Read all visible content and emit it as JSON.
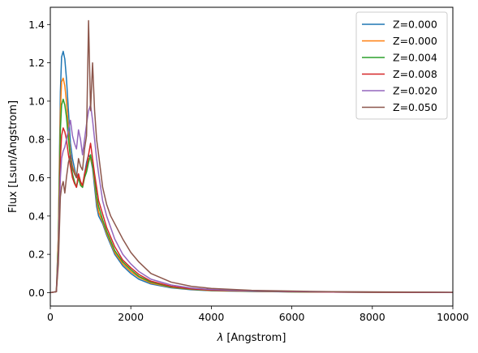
{
  "chart_data": {
    "type": "line",
    "xlabel_symbol": "λ",
    "xlabel_unit": "[Angstrom]",
    "ylabel": "Flux [Lsun/Angstrom]",
    "xlim": [
      0,
      10000
    ],
    "ylim": [
      -0.07,
      1.49
    ],
    "xticks": [
      0,
      2000,
      4000,
      6000,
      8000,
      10000
    ],
    "yticks": [
      0.0,
      0.2,
      0.4,
      0.6,
      0.8,
      1.0,
      1.2,
      1.4
    ],
    "ytick_labels": [
      "0.0",
      "0.2",
      "0.4",
      "0.6",
      "0.8",
      "1.0",
      "1.2",
      "1.4"
    ],
    "grid": false,
    "legend_position": "top-right",
    "series": [
      {
        "name": "Z=0.000",
        "color": "#1f77b4",
        "x": [
          0,
          150,
          200,
          250,
          280,
          320,
          360,
          400,
          450,
          500,
          550,
          600,
          650,
          700,
          750,
          800,
          850,
          900,
          950,
          1000,
          1050,
          1100,
          1150,
          1200,
          1300,
          1400,
          1500,
          1600,
          1800,
          2000,
          2200,
          2500,
          3000,
          3500,
          4000,
          5000,
          6000,
          7000,
          8000,
          9000,
          10000
        ],
        "y": [
          0,
          0.005,
          0.3,
          1.05,
          1.23,
          1.26,
          1.22,
          1.12,
          0.95,
          0.78,
          0.7,
          0.65,
          0.6,
          0.62,
          0.58,
          0.55,
          0.62,
          0.68,
          0.72,
          0.7,
          0.65,
          0.55,
          0.45,
          0.4,
          0.36,
          0.3,
          0.25,
          0.2,
          0.14,
          0.1,
          0.07,
          0.045,
          0.025,
          0.015,
          0.01,
          0.006,
          0.004,
          0.003,
          0.002,
          0.0015,
          0.001
        ]
      },
      {
        "name": "Z=0.000",
        "color": "#ff7f0e",
        "x": [
          0,
          150,
          200,
          250,
          280,
          320,
          360,
          400,
          450,
          500,
          550,
          600,
          650,
          700,
          750,
          800,
          850,
          900,
          950,
          1000,
          1050,
          1100,
          1150,
          1200,
          1300,
          1400,
          1500,
          1600,
          1800,
          2000,
          2200,
          2500,
          3000,
          3500,
          4000,
          5000,
          6000,
          7000,
          8000,
          9000,
          10000
        ],
        "y": [
          0,
          0.005,
          0.3,
          0.95,
          1.1,
          1.12,
          1.08,
          1.0,
          0.85,
          0.72,
          0.66,
          0.63,
          0.6,
          0.61,
          0.57,
          0.55,
          0.6,
          0.65,
          0.7,
          0.7,
          0.66,
          0.58,
          0.48,
          0.42,
          0.37,
          0.31,
          0.26,
          0.21,
          0.15,
          0.11,
          0.08,
          0.05,
          0.028,
          0.017,
          0.011,
          0.007,
          0.004,
          0.003,
          0.002,
          0.0015,
          0.001
        ]
      },
      {
        "name": "Z=0.004",
        "color": "#2ca02c",
        "x": [
          0,
          150,
          200,
          250,
          280,
          320,
          360,
          400,
          450,
          500,
          550,
          600,
          650,
          700,
          750,
          800,
          850,
          900,
          950,
          1000,
          1050,
          1100,
          1150,
          1200,
          1300,
          1400,
          1500,
          1600,
          1800,
          2000,
          2200,
          2500,
          3000,
          3500,
          4000,
          5000,
          6000,
          7000,
          8000,
          9000,
          10000
        ],
        "y": [
          0,
          0.005,
          0.25,
          0.85,
          0.98,
          1.01,
          0.98,
          0.92,
          0.8,
          0.7,
          0.62,
          0.58,
          0.55,
          0.6,
          0.56,
          0.55,
          0.6,
          0.63,
          0.68,
          0.72,
          0.66,
          0.6,
          0.5,
          0.45,
          0.38,
          0.32,
          0.27,
          0.22,
          0.16,
          0.12,
          0.085,
          0.055,
          0.03,
          0.018,
          0.012,
          0.007,
          0.004,
          0.003,
          0.002,
          0.0015,
          0.001
        ]
      },
      {
        "name": "Z=0.008",
        "color": "#d62728",
        "x": [
          0,
          150,
          200,
          250,
          280,
          320,
          360,
          400,
          450,
          500,
          550,
          600,
          650,
          700,
          750,
          800,
          850,
          900,
          950,
          1000,
          1050,
          1100,
          1150,
          1200,
          1300,
          1400,
          1500,
          1600,
          1800,
          2000,
          2200,
          2500,
          3000,
          3500,
          4000,
          5000,
          6000,
          7000,
          8000,
          9000,
          10000
        ],
        "y": [
          0,
          0.005,
          0.2,
          0.7,
          0.82,
          0.86,
          0.84,
          0.8,
          0.72,
          0.66,
          0.6,
          0.57,
          0.55,
          0.62,
          0.58,
          0.56,
          0.62,
          0.66,
          0.72,
          0.78,
          0.7,
          0.62,
          0.55,
          0.48,
          0.41,
          0.34,
          0.29,
          0.24,
          0.17,
          0.13,
          0.095,
          0.06,
          0.033,
          0.02,
          0.013,
          0.008,
          0.005,
          0.003,
          0.002,
          0.0015,
          0.001
        ]
      },
      {
        "name": "Z=0.020",
        "color": "#9467bd",
        "x": [
          0,
          150,
          200,
          250,
          280,
          320,
          360,
          400,
          450,
          500,
          550,
          600,
          650,
          700,
          750,
          800,
          850,
          900,
          950,
          1000,
          1050,
          1100,
          1150,
          1200,
          1300,
          1400,
          1500,
          1600,
          1800,
          2000,
          2200,
          2500,
          3000,
          3500,
          4000,
          5000,
          6000,
          7000,
          8000,
          9000,
          10000
        ],
        "y": [
          0,
          0.005,
          0.2,
          0.6,
          0.7,
          0.74,
          0.76,
          0.8,
          0.85,
          0.9,
          0.82,
          0.78,
          0.75,
          0.85,
          0.8,
          0.72,
          0.8,
          0.88,
          0.95,
          0.98,
          0.9,
          0.8,
          0.7,
          0.62,
          0.48,
          0.4,
          0.34,
          0.28,
          0.2,
          0.15,
          0.11,
          0.07,
          0.04,
          0.024,
          0.016,
          0.009,
          0.006,
          0.004,
          0.003,
          0.002,
          0.0015
        ]
      },
      {
        "name": "Z=0.050",
        "color": "#8c564b",
        "x": [
          0,
          150,
          200,
          250,
          280,
          320,
          360,
          400,
          450,
          500,
          550,
          600,
          650,
          700,
          750,
          800,
          850,
          900,
          950,
          1000,
          1050,
          1100,
          1150,
          1200,
          1300,
          1400,
          1500,
          1600,
          1800,
          2000,
          2200,
          2500,
          3000,
          3500,
          4000,
          5000,
          6000,
          7000,
          8000,
          9000,
          10000
        ],
        "y": [
          0,
          0.005,
          0.15,
          0.5,
          0.55,
          0.58,
          0.52,
          0.6,
          0.68,
          0.72,
          0.65,
          0.62,
          0.6,
          0.7,
          0.66,
          0.64,
          0.75,
          0.82,
          1.42,
          0.95,
          1.2,
          0.95,
          0.8,
          0.72,
          0.55,
          0.46,
          0.4,
          0.36,
          0.28,
          0.21,
          0.16,
          0.1,
          0.055,
          0.033,
          0.022,
          0.012,
          0.008,
          0.005,
          0.004,
          0.003,
          0.002
        ]
      }
    ]
  }
}
